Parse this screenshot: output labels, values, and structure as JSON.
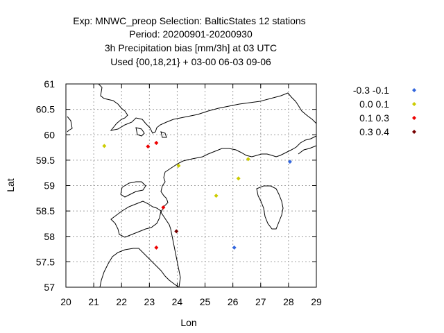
{
  "chart_data": {
    "type": "scatter",
    "title_lines": [
      "Exp: MNWC_preop   Selection: BalticStates     12 stations",
      "Period: 20200901-20200930",
      "3h Precipitation bias [mm/3h] at  03 UTC",
      "Used {00,18,21} + 03-00 06-03 09-06"
    ],
    "xlabel": "Lon",
    "ylabel": "Lat",
    "xlim": [
      20,
      29
    ],
    "ylim": [
      57,
      61
    ],
    "xticks": [
      "20",
      "21",
      "22",
      "23",
      "24",
      "25",
      "26",
      "27",
      "28",
      "29"
    ],
    "yticks": [
      "57",
      "57.5",
      "58",
      "58.5",
      "59",
      "59.5",
      "60",
      "60.5",
      "61"
    ],
    "grid": true,
    "legend_position": "right",
    "series": [
      {
        "name": "-0.3 -0.1",
        "color": "#3366dd",
        "points": [
          [
            28.05,
            59.47
          ],
          [
            26.05,
            57.78
          ]
        ]
      },
      {
        "name": "0.0 0.1",
        "color": "#cccc00",
        "points": [
          [
            21.38,
            59.78
          ],
          [
            24.05,
            59.39
          ],
          [
            26.55,
            59.52
          ],
          [
            26.2,
            59.14
          ],
          [
            25.4,
            58.8
          ]
        ]
      },
      {
        "name": "0.1 0.3",
        "color": "#ee0000",
        "points": [
          [
            22.95,
            59.77
          ],
          [
            23.25,
            59.84
          ],
          [
            23.5,
            58.57
          ],
          [
            23.25,
            57.78
          ]
        ]
      },
      {
        "name": "0.3 0.4",
        "color": "#770000",
        "points": [
          [
            23.97,
            58.1
          ]
        ]
      }
    ]
  }
}
